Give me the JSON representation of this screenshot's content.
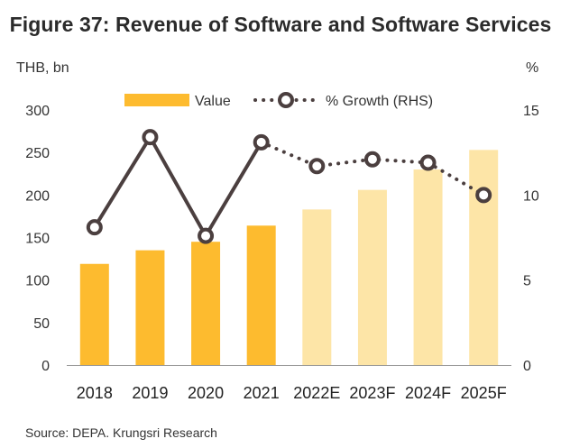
{
  "title": "Figure 37: Revenue of Software and Software Services",
  "unit_left": "THB, bn",
  "unit_right": "%",
  "source": "Source: DEPA. Krungsri Research",
  "colors": {
    "actual_bar": "#FDBB2F",
    "forecast_bar": "#FDE5A7",
    "growth_line": "#4B3F3F",
    "marker_fill": "#ffffff",
    "axis": "#999999"
  },
  "chart_data": {
    "type": "bar",
    "categories": [
      "2018",
      "2019",
      "2020",
      "2021",
      "2022E",
      "2023F",
      "2024F",
      "2025F"
    ],
    "forecast_from_index": 4,
    "series": [
      {
        "name": "Value",
        "axis": "left",
        "type": "bar",
        "values": [
          119,
          135,
          145,
          164,
          183,
          206,
          230,
          253
        ]
      },
      {
        "name": "% Growth (RHS)",
        "axis": "right",
        "type": "line",
        "values": [
          8.1,
          13.4,
          7.6,
          13.1,
          11.7,
          12.1,
          11.9,
          10.0
        ]
      }
    ],
    "ylim_left": [
      0,
      300
    ],
    "yticks_left": [
      0,
      50,
      100,
      150,
      200,
      250,
      300
    ],
    "ylim_right": [
      0,
      15
    ],
    "yticks_right": [
      0,
      5,
      10,
      15
    ],
    "legend_position": "top",
    "grid": false
  }
}
